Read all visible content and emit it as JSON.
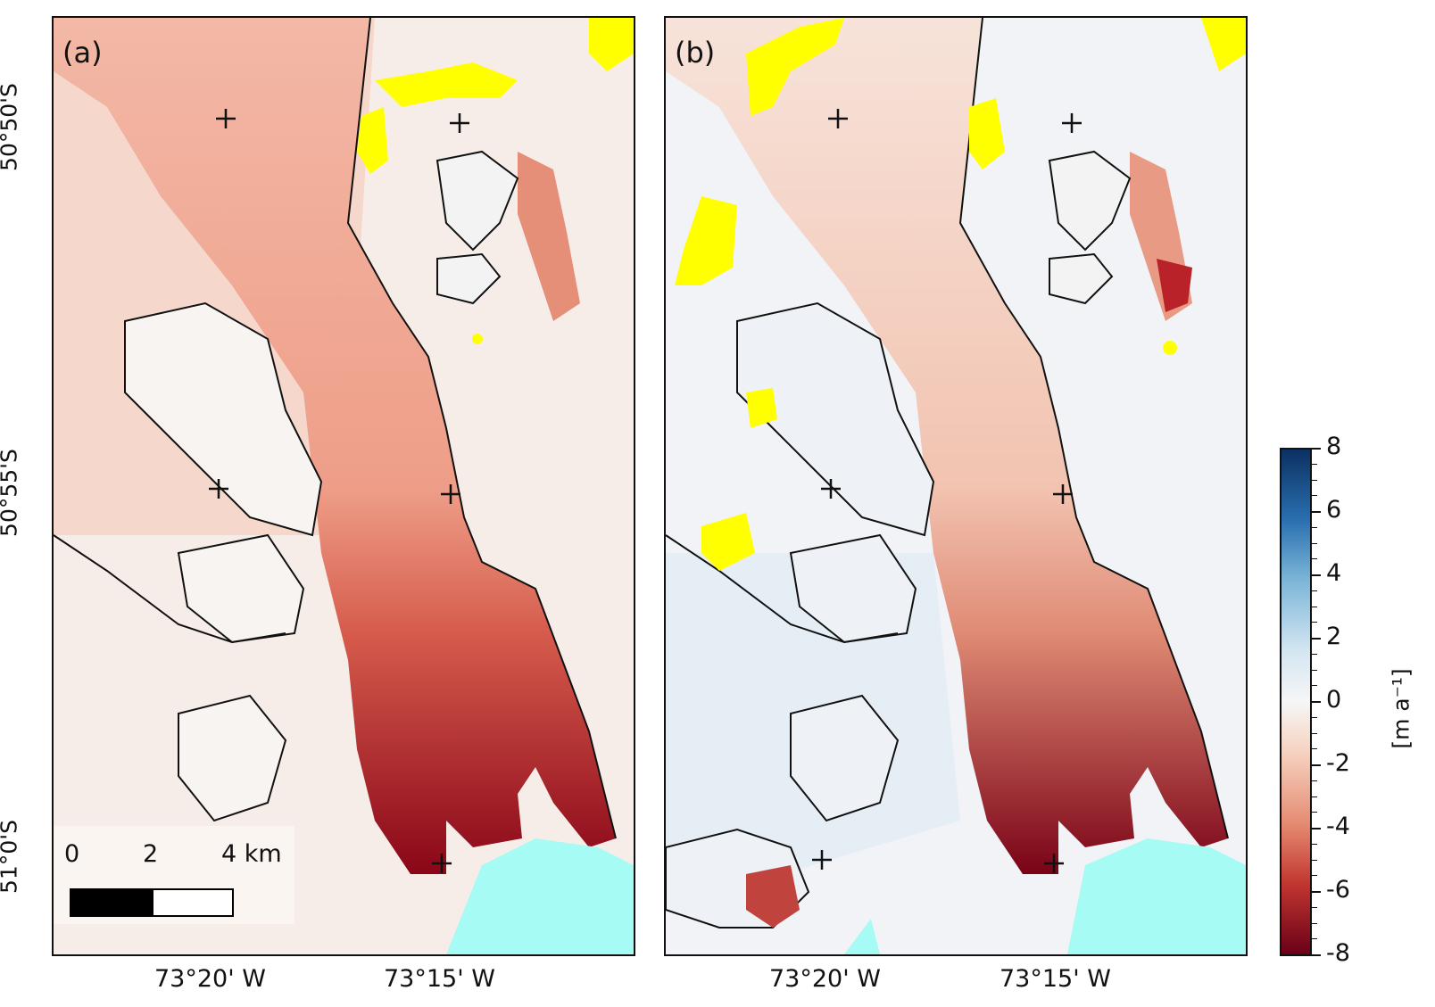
{
  "panels": [
    {
      "label": "(a)"
    },
    {
      "label": "(b)"
    }
  ],
  "lat_labels": [
    "50°50'S",
    "50°55'S",
    "51°0'S"
  ],
  "lon_labels": [
    "73°20' W",
    "73°15' W"
  ],
  "colorbar": {
    "ticks": [
      "8",
      "6",
      "4",
      "2",
      "0",
      "-2",
      "-4",
      "-6",
      "-8"
    ],
    "label": "[m a⁻¹]",
    "range": [
      -8,
      8
    ],
    "colors": {
      "positive": "#0b3062",
      "neutral": "#f6f6f6",
      "negative": "#6a0018"
    }
  },
  "scalebar": {
    "labels": [
      "0",
      "2",
      "4 km"
    ]
  },
  "colors": {
    "glacier_mild": "#ef9a84",
    "glacier_strong": "#a01018",
    "lake": "#a6fbf4",
    "nodata": "#ffff00",
    "outline": "#111111"
  }
}
